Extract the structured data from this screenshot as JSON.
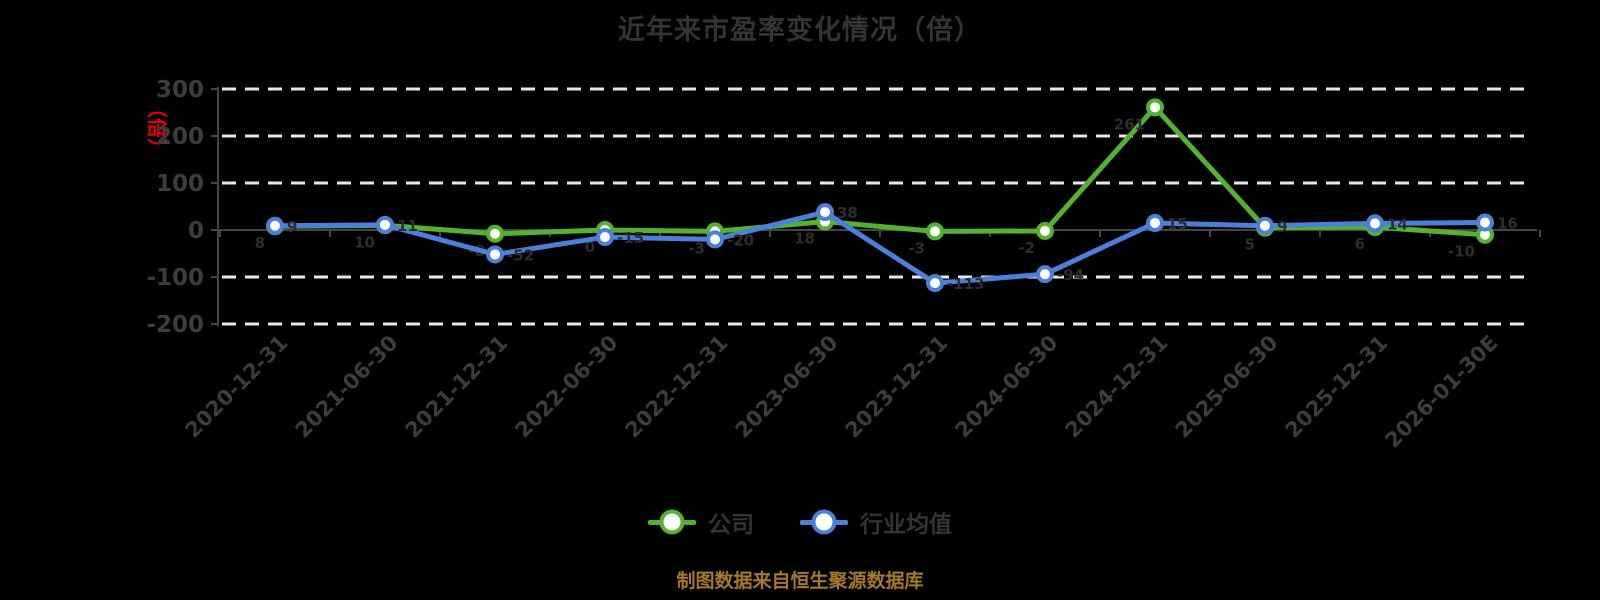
{
  "title": "近年来市盈率变化情况（倍）",
  "y_axis_unit_label": "（倍）",
  "source_note": "制图数据来自恒生聚源数据库",
  "legend": {
    "items": [
      {
        "label": "公司",
        "color": "#54b32e"
      },
      {
        "label": "行业均值",
        "color": "#4a80d9"
      }
    ]
  },
  "colors": {
    "background": "#000000",
    "title_text": "#333333",
    "axis_line": "#454545",
    "tick_label": "#3c3c3c",
    "gridline": "#e8e8e8",
    "company_line": "#54b32e",
    "industry_line": "#4a80d9",
    "marker_fill": "#ffffff",
    "point_label": "#2d2d2d",
    "unit_label": "#e60000",
    "source_text": "#a5782a"
  },
  "chart_data": {
    "type": "line",
    "title": "近年来市盈率变化情况（倍）",
    "categories": [
      "2020-12-31",
      "2021-06-30",
      "2021-12-31",
      "2022-06-30",
      "2022-12-31",
      "2023-06-30",
      "2023-12-31",
      "2024-06-30",
      "2024-12-31",
      "2025-06-30",
      "2025-12-31",
      "2026-01-30E"
    ],
    "series": [
      {
        "name": "公司",
        "color": "#54b32e",
        "values": [
          8,
          10,
          -8,
          0,
          -3,
          18,
          -3,
          -2,
          261,
          5,
          6,
          -10
        ]
      },
      {
        "name": "行业均值",
        "color": "#4a80d9",
        "values": [
          9,
          11,
          -52,
          -15,
          -20,
          38,
          -113,
          -94,
          15,
          9,
          14,
          16
        ]
      }
    ],
    "ylabel": "（倍）",
    "xlabel": "",
    "ylim": [
      -200,
      300
    ],
    "y_ticks": [
      300,
      200,
      100,
      0,
      -100,
      -200
    ],
    "grid": "horizontal-dashed",
    "legend_position": "bottom",
    "x_label_rotation": -45
  }
}
